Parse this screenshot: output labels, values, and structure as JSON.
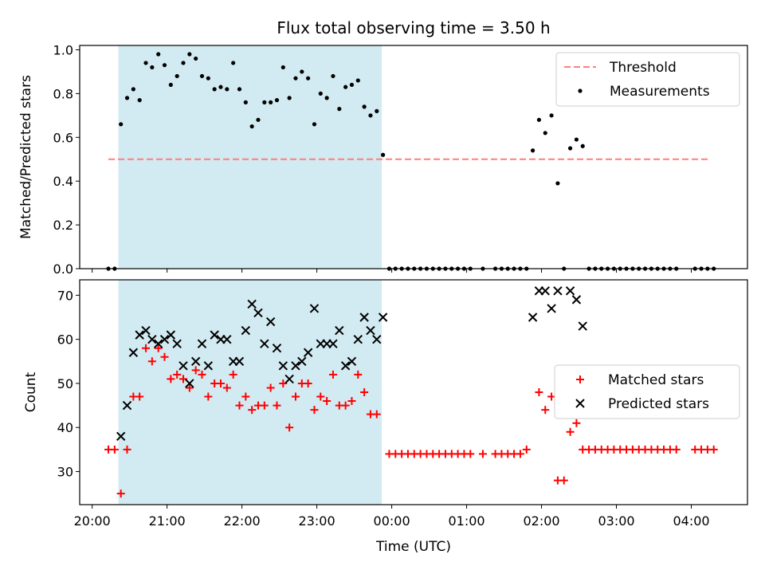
{
  "title": "Flux total observing time = 3.50 h",
  "xlabel": "Time (UTC)",
  "chart_data": [
    {
      "type": "scatter",
      "ylabel": "Matched/Predicted stars",
      "ylim": [
        0,
        1.02
      ],
      "yticks": [
        "0.0",
        "0.2",
        "0.4",
        "0.6",
        "0.8",
        "1.0"
      ],
      "xlim": [
        "19:50",
        "04:45"
      ],
      "shaded_span": [
        "20:21",
        "23:52"
      ],
      "shaded_color": "#add8e6",
      "threshold": {
        "name": "Threshold",
        "y": 0.5,
        "x_range": [
          "20:13",
          "04:15"
        ],
        "color": "#ff7f7f",
        "style": "dashed"
      },
      "legend": {
        "placement": "top-right",
        "entries": [
          "Threshold",
          "Measurements"
        ]
      },
      "series": [
        {
          "name": "Measurements",
          "color": "#000000",
          "points": [
            [
              "20:13",
              0
            ],
            [
              "20:18",
              0
            ],
            [
              "20:23",
              0.66
            ],
            [
              "20:28",
              0.78
            ],
            [
              "20:33",
              0.82
            ],
            [
              "20:38",
              0.77
            ],
            [
              "20:43",
              0.94
            ],
            [
              "20:48",
              0.92
            ],
            [
              "20:53",
              0.98
            ],
            [
              "20:58",
              0.93
            ],
            [
              "21:03",
              0.84
            ],
            [
              "21:08",
              0.88
            ],
            [
              "21:13",
              0.94
            ],
            [
              "21:18",
              0.98
            ],
            [
              "21:23",
              0.96
            ],
            [
              "21:28",
              0.88
            ],
            [
              "21:33",
              0.87
            ],
            [
              "21:38",
              0.82
            ],
            [
              "21:43",
              0.83
            ],
            [
              "21:48",
              0.82
            ],
            [
              "21:53",
              0.94
            ],
            [
              "21:58",
              0.82
            ],
            [
              "22:03",
              0.76
            ],
            [
              "22:08",
              0.65
            ],
            [
              "22:13",
              0.68
            ],
            [
              "22:18",
              0.76
            ],
            [
              "22:23",
              0.76
            ],
            [
              "22:28",
              0.77
            ],
            [
              "22:33",
              0.92
            ],
            [
              "22:38",
              0.78
            ],
            [
              "22:43",
              0.87
            ],
            [
              "22:48",
              0.9
            ],
            [
              "22:53",
              0.87
            ],
            [
              "22:58",
              0.66
            ],
            [
              "23:03",
              0.8
            ],
            [
              "23:08",
              0.78
            ],
            [
              "23:13",
              0.88
            ],
            [
              "23:18",
              0.73
            ],
            [
              "23:23",
              0.83
            ],
            [
              "23:28",
              0.84
            ],
            [
              "23:33",
              0.86
            ],
            [
              "23:38",
              0.74
            ],
            [
              "23:43",
              0.7
            ],
            [
              "23:48",
              0.72
            ],
            [
              "23:53",
              0.52
            ],
            [
              "23:58",
              0
            ],
            [
              "00:03",
              0
            ],
            [
              "00:08",
              0
            ],
            [
              "00:13",
              0
            ],
            [
              "00:18",
              0
            ],
            [
              "00:23",
              0
            ],
            [
              "00:28",
              0
            ],
            [
              "00:33",
              0
            ],
            [
              "00:38",
              0
            ],
            [
              "00:43",
              0
            ],
            [
              "00:48",
              0
            ],
            [
              "00:53",
              0
            ],
            [
              "00:58",
              0
            ],
            [
              "01:03",
              0
            ],
            [
              "01:13",
              0
            ],
            [
              "01:23",
              0
            ],
            [
              "01:28",
              0
            ],
            [
              "01:33",
              0
            ],
            [
              "01:38",
              0
            ],
            [
              "01:43",
              0
            ],
            [
              "01:48",
              0
            ],
            [
              "01:53",
              0.54
            ],
            [
              "01:58",
              0.68
            ],
            [
              "02:03",
              0.62
            ],
            [
              "02:08",
              0.7
            ],
            [
              "02:13",
              0.39
            ],
            [
              "02:18",
              0
            ],
            [
              "02:23",
              0.55
            ],
            [
              "02:28",
              0.59
            ],
            [
              "02:33",
              0.56
            ],
            [
              "02:38",
              0
            ],
            [
              "02:43",
              0
            ],
            [
              "02:48",
              0
            ],
            [
              "02:53",
              0
            ],
            [
              "02:58",
              0
            ],
            [
              "03:03",
              0
            ],
            [
              "03:08",
              0
            ],
            [
              "03:13",
              0
            ],
            [
              "03:18",
              0
            ],
            [
              "03:23",
              0
            ],
            [
              "03:28",
              0
            ],
            [
              "03:33",
              0
            ],
            [
              "03:38",
              0
            ],
            [
              "03:43",
              0
            ],
            [
              "03:48",
              0
            ],
            [
              "04:03",
              0
            ],
            [
              "04:08",
              0
            ],
            [
              "04:13",
              0
            ],
            [
              "04:18",
              0
            ]
          ]
        }
      ]
    },
    {
      "type": "scatter",
      "ylabel": "Count",
      "ylim": [
        22.5,
        73.5
      ],
      "yticks": [
        "30",
        "40",
        "50",
        "60",
        "70"
      ],
      "xlim": [
        "19:50",
        "04:45"
      ],
      "xticks": [
        "20:00",
        "21:00",
        "22:00",
        "23:00",
        "00:00",
        "01:00",
        "02:00",
        "03:00",
        "04:00"
      ],
      "shaded_span": [
        "20:21",
        "23:52"
      ],
      "shaded_color": "#add8e6",
      "legend": {
        "placement": "center-right",
        "entries": [
          "Matched stars",
          "Predicted stars"
        ]
      },
      "series": [
        {
          "name": "Matched stars",
          "marker": "plus",
          "color": "#ff0000",
          "points": [
            [
              "20:13",
              35
            ],
            [
              "20:18",
              35
            ],
            [
              "20:23",
              25
            ],
            [
              "20:28",
              35
            ],
            [
              "20:33",
              47
            ],
            [
              "20:38",
              47
            ],
            [
              "20:43",
              58
            ],
            [
              "20:48",
              55
            ],
            [
              "20:53",
              58
            ],
            [
              "20:58",
              56
            ],
            [
              "21:03",
              51
            ],
            [
              "21:08",
              52
            ],
            [
              "21:13",
              51
            ],
            [
              "21:18",
              49
            ],
            [
              "21:23",
              53
            ],
            [
              "21:28",
              52
            ],
            [
              "21:33",
              47
            ],
            [
              "21:38",
              50
            ],
            [
              "21:43",
              50
            ],
            [
              "21:48",
              49
            ],
            [
              "21:53",
              52
            ],
            [
              "21:58",
              45
            ],
            [
              "22:03",
              47
            ],
            [
              "22:08",
              44
            ],
            [
              "22:13",
              45
            ],
            [
              "22:18",
              45
            ],
            [
              "22:23",
              49
            ],
            [
              "22:28",
              45
            ],
            [
              "22:33",
              50
            ],
            [
              "22:38",
              40
            ],
            [
              "22:43",
              47
            ],
            [
              "22:48",
              50
            ],
            [
              "22:53",
              50
            ],
            [
              "22:58",
              44
            ],
            [
              "23:03",
              47
            ],
            [
              "23:08",
              46
            ],
            [
              "23:13",
              52
            ],
            [
              "23:18",
              45
            ],
            [
              "23:23",
              45
            ],
            [
              "23:28",
              46
            ],
            [
              "23:33",
              52
            ],
            [
              "23:38",
              48
            ],
            [
              "23:43",
              43
            ],
            [
              "23:48",
              43
            ],
            [
              "23:58",
              34
            ],
            [
              "00:03",
              34
            ],
            [
              "00:08",
              34
            ],
            [
              "00:13",
              34
            ],
            [
              "00:18",
              34
            ],
            [
              "00:23",
              34
            ],
            [
              "00:28",
              34
            ],
            [
              "00:33",
              34
            ],
            [
              "00:38",
              34
            ],
            [
              "00:43",
              34
            ],
            [
              "00:48",
              34
            ],
            [
              "00:53",
              34
            ],
            [
              "00:58",
              34
            ],
            [
              "01:03",
              34
            ],
            [
              "01:13",
              34
            ],
            [
              "01:23",
              34
            ],
            [
              "01:28",
              34
            ],
            [
              "01:33",
              34
            ],
            [
              "01:38",
              34
            ],
            [
              "01:43",
              34
            ],
            [
              "01:48",
              35
            ],
            [
              "01:58",
              48
            ],
            [
              "02:03",
              44
            ],
            [
              "02:08",
              47
            ],
            [
              "02:13",
              28
            ],
            [
              "02:18",
              28
            ],
            [
              "02:23",
              39
            ],
            [
              "02:28",
              41
            ],
            [
              "02:33",
              35
            ],
            [
              "02:38",
              35
            ],
            [
              "02:43",
              35
            ],
            [
              "02:48",
              35
            ],
            [
              "02:53",
              35
            ],
            [
              "02:58",
              35
            ],
            [
              "03:03",
              35
            ],
            [
              "03:08",
              35
            ],
            [
              "03:13",
              35
            ],
            [
              "03:18",
              35
            ],
            [
              "03:23",
              35
            ],
            [
              "03:28",
              35
            ],
            [
              "03:33",
              35
            ],
            [
              "03:38",
              35
            ],
            [
              "03:43",
              35
            ],
            [
              "03:48",
              35
            ],
            [
              "04:03",
              35
            ],
            [
              "04:08",
              35
            ],
            [
              "04:13",
              35
            ],
            [
              "04:18",
              35
            ]
          ]
        },
        {
          "name": "Predicted stars",
          "marker": "x",
          "color": "#000000",
          "points": [
            [
              "20:23",
              38
            ],
            [
              "20:28",
              45
            ],
            [
              "20:33",
              57
            ],
            [
              "20:38",
              61
            ],
            [
              "20:43",
              62
            ],
            [
              "20:48",
              60
            ],
            [
              "20:53",
              59
            ],
            [
              "20:58",
              60
            ],
            [
              "21:03",
              61
            ],
            [
              "21:08",
              59
            ],
            [
              "21:13",
              54
            ],
            [
              "21:18",
              50
            ],
            [
              "21:23",
              55
            ],
            [
              "21:28",
              59
            ],
            [
              "21:33",
              54
            ],
            [
              "21:38",
              61
            ],
            [
              "21:43",
              60
            ],
            [
              "21:48",
              60
            ],
            [
              "21:53",
              55
            ],
            [
              "21:58",
              55
            ],
            [
              "22:03",
              62
            ],
            [
              "22:08",
              68
            ],
            [
              "22:13",
              66
            ],
            [
              "22:18",
              59
            ],
            [
              "22:23",
              64
            ],
            [
              "22:28",
              58
            ],
            [
              "22:33",
              54
            ],
            [
              "22:38",
              51
            ],
            [
              "22:43",
              54
            ],
            [
              "22:48",
              55
            ],
            [
              "22:53",
              57
            ],
            [
              "22:58",
              67
            ],
            [
              "23:03",
              59
            ],
            [
              "23:08",
              59
            ],
            [
              "23:13",
              59
            ],
            [
              "23:18",
              62
            ],
            [
              "23:23",
              54
            ],
            [
              "23:28",
              55
            ],
            [
              "23:33",
              60
            ],
            [
              "23:38",
              65
            ],
            [
              "23:43",
              62
            ],
            [
              "23:48",
              60
            ],
            [
              "23:53",
              65
            ],
            [
              "01:53",
              65
            ],
            [
              "01:58",
              71
            ],
            [
              "02:03",
              71
            ],
            [
              "02:08",
              67
            ],
            [
              "02:13",
              71
            ],
            [
              "02:23",
              71
            ],
            [
              "02:28",
              69
            ],
            [
              "02:33",
              63
            ]
          ]
        }
      ]
    }
  ]
}
